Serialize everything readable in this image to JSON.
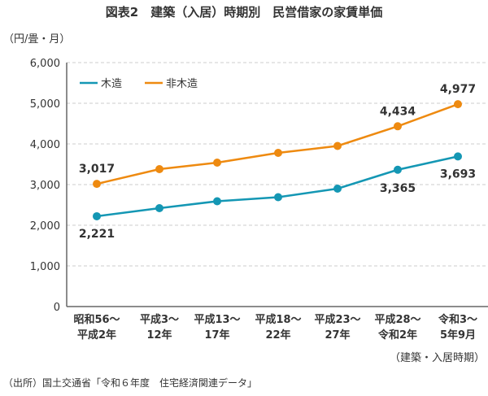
{
  "chart_data": {
    "type": "line",
    "title": "図表2　建築（入居）時期別　民営借家の家賃単価",
    "ylabel": "（円/畳・月）",
    "xlabel": "（建築・入居時期）",
    "ylim": [
      0,
      6000
    ],
    "yticks": [
      "0",
      "1,000",
      "2,000",
      "3,000",
      "4,000",
      "5,000",
      "6,000"
    ],
    "grid": true,
    "legend": "top-left",
    "categories": [
      [
        "昭和56～",
        "平成2年"
      ],
      [
        "平成3～",
        "12年"
      ],
      [
        "平成13～",
        "17年"
      ],
      [
        "平成18～",
        "22年"
      ],
      [
        "平成23～",
        "27年"
      ],
      [
        "平成28～",
        "令和2年"
      ],
      [
        "令和3～",
        "5年9月"
      ]
    ],
    "series": [
      {
        "name": "木造",
        "color": "#1497b4",
        "values": [
          2221,
          2420,
          2590,
          2690,
          2900,
          3365,
          3693
        ],
        "labels": {
          "0": "2,221",
          "5": "3,365",
          "6": "3,693"
        }
      },
      {
        "name": "非木造",
        "color": "#ee8a10",
        "values": [
          3017,
          3380,
          3540,
          3780,
          3950,
          4434,
          4977
        ],
        "labels": {
          "0": "3,017",
          "5": "4,434",
          "6": "4,977"
        }
      }
    ]
  },
  "source": "（出所）国土交通省「令和６年度　住宅経済関連データ」"
}
